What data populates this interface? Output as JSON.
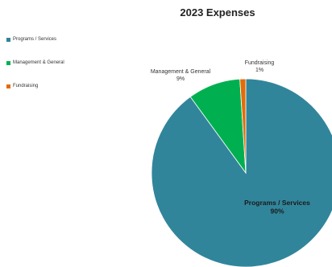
{
  "chart_data": {
    "type": "pie",
    "title": "2023 Expenses",
    "legend_position": "left",
    "slices": [
      {
        "label": "Programs / Services",
        "value": 90,
        "value_label": "90%",
        "color": "#31859b"
      },
      {
        "label": "Management & General",
        "value": 9,
        "value_label": "9%",
        "color": "#00b050"
      },
      {
        "label": "Fundraising",
        "value": 1,
        "value_label": "1%",
        "color": "#e36c09"
      }
    ]
  }
}
